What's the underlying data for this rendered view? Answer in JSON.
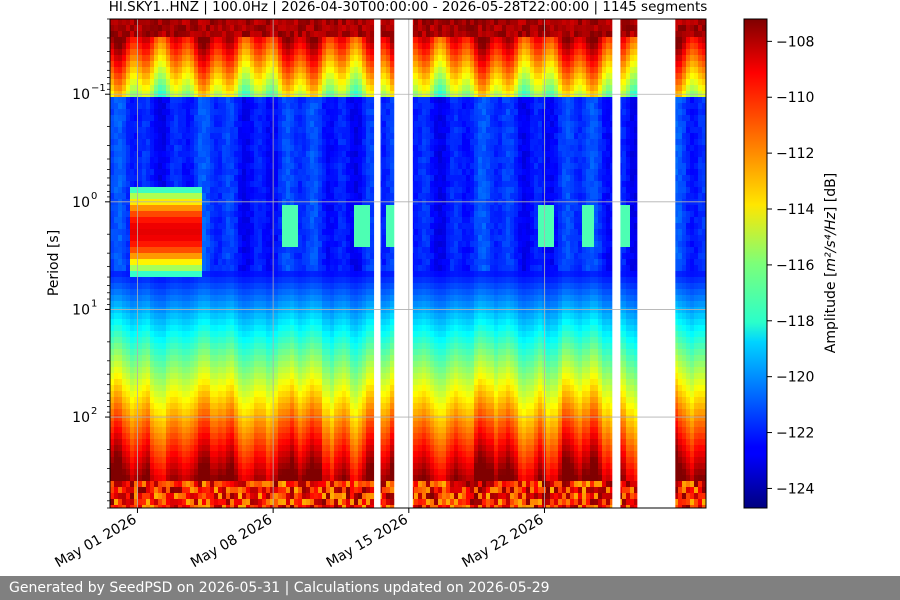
{
  "chart_data": {
    "type": "heatmap",
    "title": "HI.SKY1..HNZ | 100.0Hz | 2026-04-30T00:00:00 - 2026-05-28T22:00:00 | 1145 segments",
    "ylabel": "Period [s]",
    "y_scale": "log",
    "y_inverted": true,
    "y_range": [
      0.02,
      700
    ],
    "y_ticks": [
      {
        "value": 0.1,
        "base": "10",
        "exp": "−1"
      },
      {
        "value": 1,
        "base": "10",
        "exp": "0"
      },
      {
        "value": 10,
        "base": "10",
        "exp": "1"
      },
      {
        "value": 100,
        "base": "10",
        "exp": "2"
      }
    ],
    "x_range": [
      "2026-04-29T14:00:00",
      "2026-05-30T08:00:00"
    ],
    "x_ticks": [
      {
        "value": "2026-05-01",
        "label": "May 01 2026"
      },
      {
        "value": "2026-05-08",
        "label": "May 08 2026"
      },
      {
        "value": "2026-05-15",
        "label": "May 15 2026"
      },
      {
        "value": "2026-05-22",
        "label": "May 22 2026"
      }
    ],
    "data_gaps": [
      [
        "2026-05-13T05:00:00",
        "2026-05-13T13:00:00"
      ],
      [
        "2026-05-14T06:00:00",
        "2026-05-15T05:00:00"
      ],
      [
        "2026-05-25T12:00:00",
        "2026-05-25T22:00:00"
      ],
      [
        "2026-05-26T19:00:00",
        "2026-05-28T18:00:00"
      ]
    ],
    "colorbar": {
      "label_main": "Amplitude [",
      "label_unit": "m²/s⁴/Hz",
      "label_end": "] [dB]",
      "min": -124.7,
      "max": -107.2,
      "ticks": [
        "−108",
        "−110",
        "−112",
        "−114",
        "−116",
        "−118",
        "−120",
        "−122",
        "−124"
      ],
      "colormap": "jet"
    },
    "grid": true
  },
  "footer": {
    "text": "Generated by SeedPSD on 2026-05-31 | Calculations updated on 2026-05-29"
  }
}
